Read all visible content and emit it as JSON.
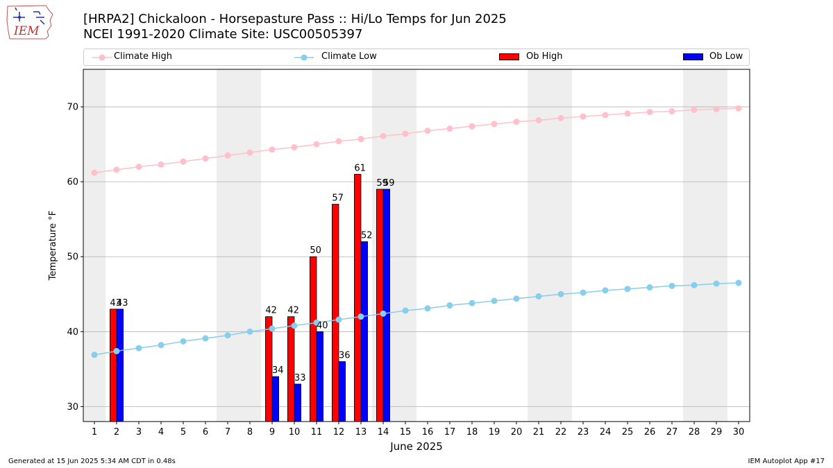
{
  "header": {
    "logo_text": "IEM",
    "title_line1": "[HRPA2] Chickaloon - Horsepasture Pass :: Hi/Lo Temps for Jun 2025",
    "title_line2": "NCEI 1991-2020 Climate Site: USC00505397"
  },
  "legend": {
    "climate_high": "Climate High",
    "climate_low": "Climate Low",
    "ob_high": "Ob High",
    "ob_low": "Ob Low"
  },
  "colors": {
    "climate_high": "#ffc0cb",
    "climate_low": "#87ceeb",
    "ob_high": "#ff0000",
    "ob_low": "#0000ff",
    "weekend_shade": "#eeeeee",
    "grid": "#b0b0b0"
  },
  "chart_data": {
    "type": "bar",
    "title": "[HRPA2] Chickaloon - Horsepasture Pass :: Hi/Lo Temps for Jun 2025",
    "subtitle": "NCEI 1991-2020 Climate Site: USC00505397",
    "xlabel": "June 2025",
    "ylabel": "Temperature °F",
    "xlim": [
      0.5,
      30.5
    ],
    "ylim": [
      28,
      75
    ],
    "yticks": [
      30,
      40,
      50,
      60,
      70
    ],
    "xticks": [
      1,
      2,
      3,
      4,
      5,
      6,
      7,
      8,
      9,
      10,
      11,
      12,
      13,
      14,
      15,
      16,
      17,
      18,
      19,
      20,
      21,
      22,
      23,
      24,
      25,
      26,
      27,
      28,
      29,
      30
    ],
    "grid": "horizontal",
    "legend_position": "top",
    "weekend_bands": [
      [
        0.5,
        1.5
      ],
      [
        6.5,
        8.5
      ],
      [
        13.5,
        15.5
      ],
      [
        20.5,
        22.5
      ],
      [
        27.5,
        29.5
      ]
    ],
    "climate_high": {
      "name": "Climate High",
      "x": [
        1,
        2,
        3,
        4,
        5,
        6,
        7,
        8,
        9,
        10,
        11,
        12,
        13,
        14,
        15,
        16,
        17,
        18,
        19,
        20,
        21,
        22,
        23,
        24,
        25,
        26,
        27,
        28,
        29,
        30
      ],
      "values": [
        61.2,
        61.6,
        62.0,
        62.3,
        62.7,
        63.1,
        63.5,
        63.9,
        64.3,
        64.6,
        65.0,
        65.4,
        65.7,
        66.1,
        66.4,
        66.8,
        67.1,
        67.4,
        67.7,
        68.0,
        68.2,
        68.5,
        68.7,
        68.9,
        69.1,
        69.3,
        69.4,
        69.6,
        69.7,
        69.8
      ]
    },
    "climate_low": {
      "name": "Climate Low",
      "x": [
        1,
        2,
        3,
        4,
        5,
        6,
        7,
        8,
        9,
        10,
        11,
        12,
        13,
        14,
        15,
        16,
        17,
        18,
        19,
        20,
        21,
        22,
        23,
        24,
        25,
        26,
        27,
        28,
        29,
        30
      ],
      "values": [
        36.9,
        37.4,
        37.8,
        38.2,
        38.7,
        39.1,
        39.5,
        40.0,
        40.4,
        40.8,
        41.2,
        41.6,
        42.0,
        42.4,
        42.8,
        43.1,
        43.5,
        43.8,
        44.1,
        44.4,
        44.7,
        45.0,
        45.2,
        45.5,
        45.7,
        45.9,
        46.1,
        46.2,
        46.4,
        46.5
      ]
    },
    "ob_high": {
      "name": "Ob High",
      "x": [
        2,
        9,
        10,
        11,
        12,
        13,
        14
      ],
      "values": [
        43,
        42,
        42,
        50,
        57,
        61,
        59
      ],
      "labels": [
        "43",
        "42",
        "42",
        "50",
        "57",
        "61",
        "59"
      ]
    },
    "ob_low": {
      "name": "Ob Low",
      "x": [
        2,
        9,
        10,
        11,
        12,
        13,
        14
      ],
      "values": [
        43,
        34,
        33,
        40,
        36,
        52,
        59
      ],
      "labels": [
        "43",
        "34",
        "33",
        "40",
        "36",
        "52",
        "59"
      ]
    }
  },
  "footer": {
    "left": "Generated at 15 Jun 2025 5:34 AM CDT in 0.48s",
    "right": "IEM Autoplot App #17"
  }
}
